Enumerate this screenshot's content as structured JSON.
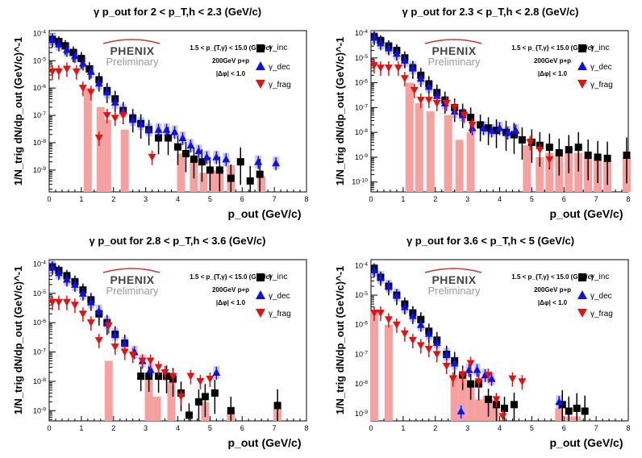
{
  "figure": {
    "y_axis_label": "1/N_trig dN/dp_out (GeV/c)^-1",
    "x_axis_label": "p_out (GeV/c)",
    "logo_main": "PHENIX",
    "logo_sub": "Preliminary",
    "info_lines": [
      "1.5 < p_{T,γ} < 15.0 (GeV/c)",
      "200GeV p+p",
      "|Δφ| < 1.0"
    ],
    "legend": [
      "γ_inc",
      "γ_dec",
      "γ_frag"
    ],
    "colors": {
      "inc": "#000000",
      "dec": "#1010e6",
      "frag": "#e61010",
      "sys": "#f7a0a0",
      "logo_arc": "#cc3333"
    }
  },
  "chart_data": [
    {
      "type": "scatter",
      "title": "γ p_out for 2 < p_T,h < 2.3 (GeV/c)",
      "xlabel": "p_out (GeV/c)",
      "ylabel": "1/N_trig dN/dp_out (GeV/c)^-1",
      "xlim": [
        0,
        8
      ],
      "ylog10_lim": [
        -9.8,
        -3.9
      ],
      "xticks": [
        0,
        1,
        2,
        3,
        4,
        5,
        6,
        7,
        8
      ],
      "yticks": [
        -9,
        -8,
        -7,
        -6,
        -5,
        -4
      ],
      "series": [
        {
          "name": "γ_inc",
          "x": [
            0.1,
            0.3,
            0.5,
            0.75,
            1.0,
            1.25,
            1.55,
            1.8,
            2.05,
            2.3,
            2.6,
            2.85,
            3.1,
            3.4,
            3.7,
            4.0,
            4.25,
            4.5,
            4.75,
            5.0,
            5.3,
            5.65,
            5.95,
            6.25,
            6.55
          ],
          "y": [
            6e-05,
            5e-05,
            3.5e-05,
            2e-05,
            1.2e-05,
            5e-06,
            2e-06,
            8e-07,
            4e-07,
            1.5e-07,
            8e-08,
            5e-08,
            3e-08,
            1.5e-08,
            1.5e-08,
            7e-09,
            4e-09,
            2.5e-09,
            2e-09,
            1e-09,
            1e-09,
            5e-10,
            2e-09,
            4e-10,
            7e-10
          ]
        },
        {
          "name": "γ_dec",
          "x": [
            0.1,
            0.3,
            0.55,
            0.8,
            1.05,
            1.3,
            1.55,
            1.8,
            2.05,
            2.3,
            2.6,
            2.85,
            3.1,
            3.4,
            3.65,
            3.9,
            4.15,
            4.4,
            4.65,
            4.9,
            5.2,
            5.5,
            6.5,
            7.05
          ],
          "y": [
            6e-05,
            4e-05,
            2.5e-05,
            1.5e-05,
            8e-06,
            4e-06,
            1.5e-06,
            7e-07,
            3e-07,
            1.5e-07,
            7e-08,
            5e-08,
            3e-08,
            3e-08,
            3e-08,
            2.5e-08,
            1.5e-08,
            8e-09,
            5e-09,
            3e-09,
            3e-09,
            2.5e-09,
            2e-09,
            1.8e-09
          ]
        },
        {
          "name": "γ_frag",
          "x": [
            0.1,
            0.3,
            0.55,
            0.85,
            1.05,
            1.3,
            1.55,
            1.8,
            2.05,
            2.3,
            3.2
          ],
          "y": [
            4e-06,
            4e-06,
            5e-06,
            4e-06,
            1e-06,
            7e-07,
            1.5e-08,
            1e-07,
            8e-08,
            1e-07,
            3e-09
          ]
        },
        {
          "name": "sys_band",
          "x": [
            1.2,
            1.6,
            1.8,
            2.35,
            4.1,
            4.5,
            4.8,
            5.1,
            5.3,
            5.65,
            6.2,
            6.6
          ],
          "y": [
            1e-06,
            2e-07,
            7e-08,
            3e-08,
            4e-09,
            2.5e-09,
            8e-10,
            1e-09,
            1e-09,
            1.5e-09,
            1e-10,
            6e-10
          ]
        }
      ]
    },
    {
      "type": "scatter",
      "title": "γ p_out for 2.3 < p_T,h < 2.8 (GeV/c)",
      "xlabel": "p_out (GeV/c)",
      "ylabel": "1/N_trig dN/dp_out (GeV/c)^-1",
      "xlim": [
        0,
        8
      ],
      "ylog10_lim": [
        -10.4,
        -3.9
      ],
      "xticks": [
        0,
        1,
        2,
        3,
        4,
        5,
        6,
        7,
        8
      ],
      "yticks": [
        -10,
        -9,
        -8,
        -7,
        -6,
        -5,
        -4
      ],
      "series": [
        {
          "name": "γ_inc",
          "x": [
            0.1,
            0.3,
            0.55,
            0.8,
            1.05,
            1.3,
            1.55,
            1.8,
            2.05,
            2.3,
            2.6,
            2.85,
            3.1,
            3.4,
            3.65,
            3.9,
            4.2,
            4.45,
            4.7,
            5.0,
            5.25,
            5.55,
            5.85,
            6.15,
            6.45,
            6.75,
            7.05,
            7.35,
            7.95
          ],
          "y": [
            7e-05,
            5e-05,
            3e-05,
            2e-05,
            1e-05,
            4e-06,
            2e-06,
            9e-07,
            4e-07,
            2e-07,
            1e-07,
            6e-08,
            4e-08,
            2e-08,
            1.5e-08,
            1.2e-08,
            1e-08,
            8e-09,
            5e-09,
            4e-09,
            3e-09,
            2.5e-09,
            1.5e-09,
            2e-09,
            2.5e-09,
            1.2e-09,
            1e-09,
            9e-10,
            1.2e-09
          ]
        },
        {
          "name": "γ_dec",
          "x": [
            0.1,
            0.3,
            0.55,
            0.8,
            1.05,
            1.3,
            1.55,
            1.8,
            2.05,
            2.3,
            2.6,
            2.85,
            3.15,
            3.5,
            3.75,
            4.0,
            4.25,
            4.5
          ],
          "y": [
            7e-05,
            4e-05,
            2.5e-05,
            1.5e-05,
            8e-06,
            4e-06,
            1.5e-06,
            7e-07,
            3e-07,
            1.5e-07,
            7e-08,
            5e-08,
            1.5e-08,
            1.5e-08,
            1.2e-08,
            1.5e-08,
            1e-08,
            1.2e-08
          ]
        },
        {
          "name": "γ_frag",
          "x": [
            0.1,
            0.3,
            0.55,
            0.85,
            1.05,
            1.35,
            1.55,
            1.8,
            2.05,
            2.35,
            2.6,
            2.9,
            3.15,
            4.95,
            5.25,
            5.55
          ],
          "y": [
            5e-06,
            4e-06,
            4e-06,
            4e-06,
            1.5e-06,
            5e-07,
            2e-07,
            2e-07,
            1.5e-07,
            1.5e-07,
            1e-07,
            5e-08,
            2e-08,
            4e-09,
            2e-09,
            8e-10
          ]
        },
        {
          "name": "sys_band",
          "x": [
            1.2,
            1.5,
            1.85,
            2.4,
            2.75,
            3.1,
            4.85,
            5.25,
            5.55,
            5.85,
            6.15,
            6.45,
            6.75,
            7.05,
            7.35,
            7.95
          ],
          "y": [
            1e-06,
            1.5e-07,
            7e-08,
            5e-08,
            5e-09,
            1e-08,
            3e-09,
            1e-09,
            1.5e-09,
            1.5e-09,
            1.5e-09,
            1.5e-09,
            1e-09,
            1e-09,
            7e-10,
            1e-09
          ]
        }
      ]
    },
    {
      "type": "scatter",
      "title": "γ p_out for 2.8 < p_T,h < 3.6 (GeV/c)",
      "xlabel": "p_out (GeV/c)",
      "ylabel": "1/N_trig dN/dp_out (GeV/c)^-1",
      "xlim": [
        0,
        8
      ],
      "ylog10_lim": [
        -9.35,
        -3.85
      ],
      "xticks": [
        0,
        1,
        2,
        3,
        4,
        5,
        6,
        7,
        8
      ],
      "yticks": [
        -9,
        -8,
        -7,
        -6,
        -5,
        -4
      ],
      "series": [
        {
          "name": "γ_inc",
          "x": [
            0.1,
            0.3,
            0.55,
            0.8,
            1.05,
            1.3,
            1.55,
            1.8,
            2.05,
            2.35,
            2.85,
            3.1,
            3.4,
            3.65,
            3.85,
            4.1,
            4.35,
            4.65,
            4.85,
            5.15,
            5.65,
            7.1
          ],
          "y": [
            8e-05,
            6e-05,
            4e-05,
            2.5e-05,
            1.3e-05,
            6e-06,
            2e-06,
            1e-06,
            4e-07,
            2e-07,
            1.5e-08,
            1.5e-08,
            1.5e-08,
            1.5e-08,
            1.2e-08,
            4e-09,
            7e-10,
            2e-09,
            3e-09,
            4e-09,
            1e-09,
            1.5e-09
          ]
        },
        {
          "name": "γ_dec",
          "x": [
            0.1,
            0.3,
            0.55,
            0.8,
            1.05,
            1.3,
            1.55,
            1.8,
            2.05,
            2.35,
            2.65,
            2.9,
            3.15,
            5.2
          ],
          "y": [
            8e-05,
            5e-05,
            3e-05,
            2e-05,
            1e-05,
            5e-06,
            2.5e-06,
            1e-06,
            4e-07,
            2e-07,
            1e-07,
            5e-08,
            2.5e-08,
            2e-08
          ]
        },
        {
          "name": "γ_frag",
          "x": [
            0.1,
            0.3,
            0.55,
            0.8,
            1.05,
            1.3,
            1.55,
            1.85,
            2.05,
            2.35,
            2.6,
            2.9,
            3.15,
            3.4,
            3.6,
            3.85,
            4.1,
            4.4,
            4.7,
            5.0
          ],
          "y": [
            5e-06,
            5e-06,
            5e-06,
            4e-06,
            2e-06,
            1e-06,
            2.5e-07,
            8e-07,
            1.5e-07,
            1e-07,
            8e-08,
            5e-08,
            5e-08,
            3e-08,
            2e-08,
            1.5e-08,
            3e-09,
            1.5e-08,
            1e-08,
            1.2e-08
          ]
        },
        {
          "name": "sys_band",
          "x": [
            1.85,
            3.1,
            3.35,
            3.8,
            4.35,
            4.85,
            5.65,
            7.1
          ],
          "y": [
            5e-08,
            1.2e-08,
            3e-09,
            1e-08,
            3e-10,
            2e-09,
            1e-09,
            1.2e-09
          ]
        }
      ]
    },
    {
      "type": "scatter",
      "title": "γ p_out for 3.6 < p_T,h < 5 (GeV/c)",
      "xlabel": "p_out (GeV/c)",
      "ylabel": "1/N_trig dN/dp_out (GeV/c)^-1",
      "xlim": [
        0,
        8
      ],
      "ylog10_lim": [
        -9.25,
        -3.8
      ],
      "xticks": [
        0,
        1,
        2,
        3,
        4,
        5,
        6,
        7,
        8
      ],
      "yticks": [
        -9,
        -8,
        -7,
        -6,
        -5,
        -4
      ],
      "series": [
        {
          "name": "γ_inc",
          "x": [
            0.1,
            0.3,
            0.55,
            0.8,
            1.05,
            1.3,
            1.55,
            1.8,
            2.05,
            2.35,
            2.6,
            2.85,
            3.1,
            3.35,
            3.65,
            3.9,
            4.15,
            4.45,
            5.95,
            6.15,
            6.4,
            6.65
          ],
          "y": [
            8e-05,
            4e-05,
            2e-05,
            1e-05,
            5e-06,
            2.5e-06,
            1.5e-06,
            6e-07,
            3e-07,
            1e-07,
            6e-08,
            2e-08,
            1e-08,
            1e-08,
            3e-09,
            2e-09,
            1.5e-09,
            2e-09,
            2e-09,
            1.2e-09,
            1.5e-09,
            1.2e-09
          ]
        },
        {
          "name": "γ_dec",
          "x": [
            0.1,
            0.3,
            0.55,
            0.8,
            1.05,
            1.3,
            1.55,
            1.8,
            2.05,
            2.35,
            2.6,
            2.8,
            3.05,
            3.3,
            3.55,
            3.75,
            5.85
          ],
          "y": [
            7e-05,
            4e-05,
            2e-05,
            1e-05,
            4e-06,
            2e-06,
            1e-06,
            5e-07,
            2.5e-07,
            1e-07,
            5e-08,
            1.2e-09,
            3e-08,
            3e-08,
            2e-08,
            1.5e-08,
            2.5e-09
          ]
        },
        {
          "name": "γ_frag",
          "x": [
            0.1,
            0.3,
            0.55,
            0.8,
            1.05,
            1.3,
            1.55,
            1.8,
            2.05,
            2.35,
            2.55,
            2.85,
            3.1,
            3.35,
            3.65,
            3.9,
            4.1,
            4.4,
            4.7
          ],
          "y": [
            2.5e-06,
            2.5e-06,
            1.5e-06,
            1e-06,
            5e-07,
            3e-07,
            2e-07,
            1.5e-07,
            1e-07,
            4e-08,
            1.5e-08,
            2e-08,
            5e-08,
            1.2e-08,
            2e-08,
            3e-09,
            8e-10,
            1.5e-08,
            1.2e-08
          ]
        },
        {
          "name": "sys_band",
          "x": [
            0.1,
            0.55,
            2.6,
            2.85,
            3.1,
            3.35,
            3.6,
            3.85,
            5.85,
            6.15,
            6.4
          ],
          "y": [
            3e-06,
            1e-06,
            2e-08,
            1.5e-08,
            1e-08,
            3e-09,
            4e-09,
            3e-09,
            1.5e-09,
            8e-10,
            8e-10
          ]
        }
      ]
    }
  ]
}
